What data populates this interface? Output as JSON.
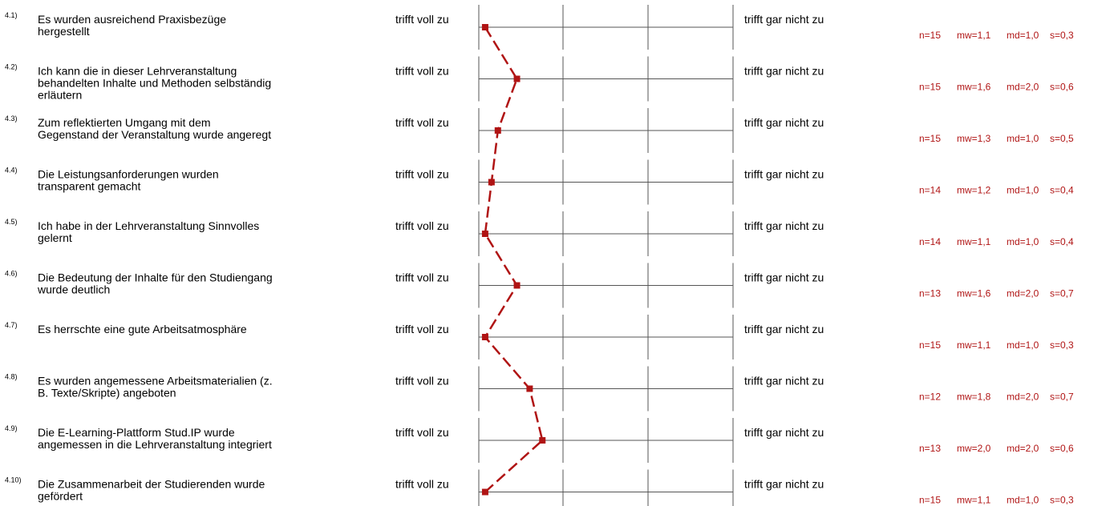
{
  "chart_data": {
    "type": "line",
    "left_label": "trifft voll zu",
    "right_label": "trifft gar nicht zu",
    "scale": [
      1,
      5
    ],
    "line_color": "#b01414",
    "stat_color": "#b01414",
    "items": [
      {
        "num": "4.1)",
        "lines": [
          "Es wurden ausreichend Praxisbezüge",
          "hergestellt"
        ],
        "value": 1.1,
        "n": "n=15",
        "mw": "mw=1,1",
        "md": "md=1,0",
        "s": "s=0,3"
      },
      {
        "num": "4.2)",
        "lines": [
          "Ich kann die in dieser Lehrveranstaltung",
          "behandelten Inhalte und Methoden selbständig",
          "erläutern"
        ],
        "value": 1.6,
        "n": "n=15",
        "mw": "mw=1,6",
        "md": "md=2,0",
        "s": "s=0,6"
      },
      {
        "num": "4.3)",
        "lines": [
          "Zum reflektierten Umgang mit dem",
          "Gegenstand der Veranstaltung wurde angeregt"
        ],
        "value": 1.3,
        "n": "n=15",
        "mw": "mw=1,3",
        "md": "md=1,0",
        "s": "s=0,5"
      },
      {
        "num": "4.4)",
        "lines": [
          "Die Leistungsanforderungen wurden",
          "transparent gemacht"
        ],
        "value": 1.2,
        "n": "n=14",
        "mw": "mw=1,2",
        "md": "md=1,0",
        "s": "s=0,4"
      },
      {
        "num": "4.5)",
        "lines": [
          "Ich habe in der Lehrveranstaltung Sinnvolles",
          "gelernt"
        ],
        "value": 1.1,
        "n": "n=14",
        "mw": "mw=1,1",
        "md": "md=1,0",
        "s": "s=0,4"
      },
      {
        "num": "4.6)",
        "lines": [
          "Die Bedeutung der Inhalte für den Studiengang",
          "wurde deutlich"
        ],
        "value": 1.6,
        "n": "n=13",
        "mw": "mw=1,6",
        "md": "md=2,0",
        "s": "s=0,7"
      },
      {
        "num": "4.7)",
        "lines": [
          "Es herrschte eine gute Arbeitsatmosphäre"
        ],
        "value": 1.1,
        "n": "n=15",
        "mw": "mw=1,1",
        "md": "md=1,0",
        "s": "s=0,3"
      },
      {
        "num": "4.8)",
        "lines": [
          "Es wurden angemessene Arbeitsmaterialien (z.",
          "B. Texte/Skripte) angeboten"
        ],
        "value": 1.8,
        "n": "n=12",
        "mw": "mw=1,8",
        "md": "md=2,0",
        "s": "s=0,7"
      },
      {
        "num": "4.9)",
        "lines": [
          "Die E-Learning-Plattform Stud.IP wurde",
          "angemessen in die Lehrveranstaltung integriert"
        ],
        "value": 2.0,
        "n": "n=13",
        "mw": "mw=2,0",
        "md": "md=2,0",
        "s": "s=0,6"
      },
      {
        "num": "4.10)",
        "lines": [
          "Die Zusammenarbeit der Studierenden wurde",
          "gefördert"
        ],
        "value": 1.1,
        "n": "n=15",
        "mw": "mw=1,1",
        "md": "md=1,0",
        "s": "s=0,3"
      }
    ]
  }
}
